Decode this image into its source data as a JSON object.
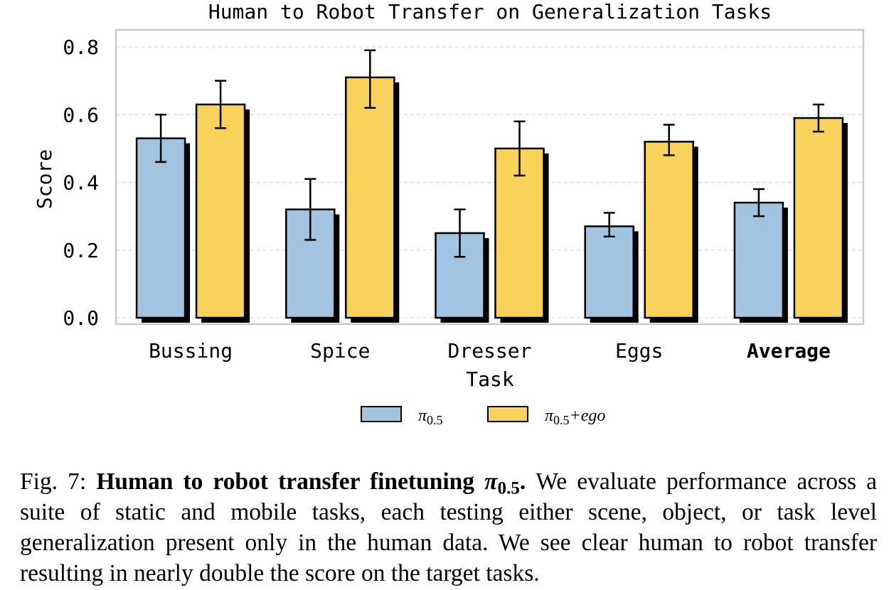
{
  "chart_data": {
    "type": "bar",
    "title": "Human to Robot Transfer on Generalization Tasks",
    "xlabel": "Task",
    "ylabel": "Score",
    "categories": [
      "Bussing",
      "Spice",
      "Dresser",
      "Eggs",
      "Average"
    ],
    "bold_category": "Average",
    "ylim": [
      0,
      0.86
    ],
    "yticks": [
      "0.0",
      "0.2",
      "0.4",
      "0.6",
      "0.8"
    ],
    "grid": "horizontal dashed",
    "legend_position": "bottom-center",
    "series": [
      {
        "name": "π0.5",
        "legend_base": "π",
        "legend_sub": "0.5",
        "legend_suffix": "",
        "color": "#a3c4e0",
        "values": [
          0.53,
          0.32,
          0.25,
          0.27,
          0.34
        ],
        "err_low": [
          0.46,
          0.23,
          0.18,
          0.24,
          0.3
        ],
        "err_high": [
          0.6,
          0.41,
          0.32,
          0.31,
          0.38
        ]
      },
      {
        "name": "π0.5 + ego",
        "legend_base": "π",
        "legend_sub": "0.5",
        "legend_suffix": "+ego",
        "color": "#f8d25b",
        "values": [
          0.63,
          0.71,
          0.5,
          0.52,
          0.59
        ],
        "err_low": [
          0.56,
          0.62,
          0.42,
          0.48,
          0.55
        ],
        "err_high": [
          0.7,
          0.79,
          0.58,
          0.57,
          0.63
        ]
      }
    ]
  },
  "caption": {
    "label": "Fig. 7:",
    "bold": "Human to robot transfer finetuning",
    "pi": "π",
    "pi_sub": "0.5",
    "bold_end": ".",
    "text": " We evaluate performance across a suite of static and mobile tasks, each testing either scene, object, or task level generalization present only in the human data. We see clear human to robot transfer resulting in nearly double the score on the target tasks."
  }
}
